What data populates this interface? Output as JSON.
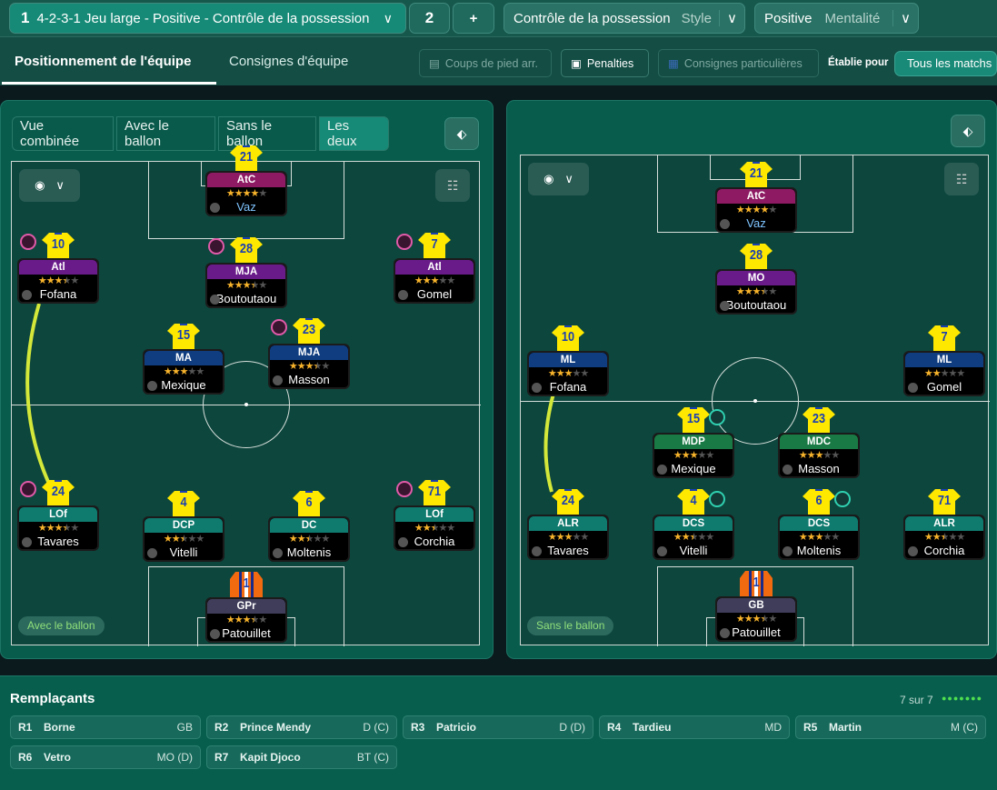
{
  "topbar": {
    "tactic1": {
      "number": "1",
      "label": "4-2-3-1 Jeu large - Positive - Contrôle de la possession"
    },
    "tactic2": "2",
    "add": "+",
    "style": {
      "value": "Contrôle de la possession",
      "label": "Style"
    },
    "mentality": {
      "value": "Positive",
      "label": "Mentalité"
    }
  },
  "tabs": [
    {
      "label": "Positionnement de l'équipe",
      "active": true
    },
    {
      "label": "Consignes d'équipe",
      "active": false
    }
  ],
  "toolbar": {
    "set_pieces": "Coups de pied arr.",
    "penalties": "Penalties",
    "special": "Consignes particulières",
    "set_for_label": "Établie pour",
    "set_for_value": "Tous les matchs"
  },
  "view_tabs": [
    {
      "label": "Vue combinée"
    },
    {
      "label": "Avec le ballon"
    },
    {
      "label": "Sans le ballon"
    },
    {
      "label": "Les deux",
      "active": true
    }
  ],
  "left_pitch": {
    "label": "Avec le ballon",
    "players": [
      {
        "num": "21",
        "role": "AtC",
        "stars": 4,
        "name": "Vaz",
        "color": "#8e1a63"
      },
      {
        "num": "10",
        "role": "Atl",
        "stars": 3.5,
        "name": "Fofana",
        "color": "#6a1b8a"
      },
      {
        "num": "28",
        "role": "MJA",
        "stars": 3.5,
        "name": "Boutoutaou",
        "color": "#6a1b8a"
      },
      {
        "num": "7",
        "role": "Atl",
        "stars": 3,
        "name": "Gomel",
        "color": "#6a1b8a"
      },
      {
        "num": "15",
        "role": "MA",
        "stars": 3,
        "name": "Mexique",
        "color": "#0f3d80"
      },
      {
        "num": "23",
        "role": "MJA",
        "stars": 3.5,
        "name": "Masson",
        "color": "#0f3d80"
      },
      {
        "num": "24",
        "role": "LOf",
        "stars": 3.5,
        "name": "Tavares",
        "color": "#0f7a6e"
      },
      {
        "num": "4",
        "role": "DCP",
        "stars": 2.5,
        "name": "Vitelli",
        "color": "#0f7a6e"
      },
      {
        "num": "6",
        "role": "DC",
        "stars": 2.5,
        "name": "Moltenis",
        "color": "#0f7a6e"
      },
      {
        "num": "71",
        "role": "LOf",
        "stars": 2.5,
        "name": "Corchia",
        "color": "#0f7a6e"
      },
      {
        "num": "1",
        "role": "GPr",
        "stars": 3.5,
        "name": "Patouillet",
        "color": "#3f3d5a",
        "gk": true
      }
    ]
  },
  "right_pitch": {
    "label": "Sans le ballon",
    "players": [
      {
        "num": "21",
        "role": "AtC",
        "stars": 4,
        "name": "Vaz",
        "color": "#8e1a63"
      },
      {
        "num": "28",
        "role": "MO",
        "stars": 3.5,
        "name": "Boutoutaou",
        "color": "#6a1b8a"
      },
      {
        "num": "10",
        "role": "ML",
        "stars": 3,
        "name": "Fofana",
        "color": "#0f3d80"
      },
      {
        "num": "7",
        "role": "ML",
        "stars": 2,
        "name": "Gomel",
        "color": "#0f3d80"
      },
      {
        "num": "15",
        "role": "MDP",
        "stars": 3,
        "name": "Mexique",
        "color": "#1a7a45"
      },
      {
        "num": "23",
        "role": "MDC",
        "stars": 3,
        "name": "Masson",
        "color": "#1a7a45"
      },
      {
        "num": "24",
        "role": "ALR",
        "stars": 3,
        "name": "Tavares",
        "color": "#0f7a6e"
      },
      {
        "num": "4",
        "role": "DCS",
        "stars": 2.5,
        "name": "Vitelli",
        "color": "#0f7a6e"
      },
      {
        "num": "6",
        "role": "DCS",
        "stars": 3,
        "name": "Moltenis",
        "color": "#0f7a6e"
      },
      {
        "num": "71",
        "role": "ALR",
        "stars": 2.5,
        "name": "Corchia",
        "color": "#0f7a6e"
      },
      {
        "num": "1",
        "role": "GB",
        "stars": 3.5,
        "name": "Patouillet",
        "color": "#3f3d5a",
        "gk": true
      }
    ]
  },
  "subs": {
    "title": "Remplaçants",
    "count": "7 sur 7",
    "items": [
      {
        "slot": "R1",
        "name": "Borne",
        "pos": "GB"
      },
      {
        "slot": "R2",
        "name": "Prince Mendy",
        "pos": "D (C)"
      },
      {
        "slot": "R3",
        "name": "Patricio",
        "pos": "D (D)"
      },
      {
        "slot": "R4",
        "name": "Tardieu",
        "pos": "MD"
      },
      {
        "slot": "R5",
        "name": "Martin",
        "pos": "M (C)"
      },
      {
        "slot": "R6",
        "name": "Vetro",
        "pos": "MO (D)"
      },
      {
        "slot": "R7",
        "name": "Kapit Djoco",
        "pos": "BT (C)"
      }
    ]
  },
  "colors": {
    "accent": "#1a8a78",
    "status_dot": "#4fe04f",
    "run_arrow": "#d4e83a"
  }
}
